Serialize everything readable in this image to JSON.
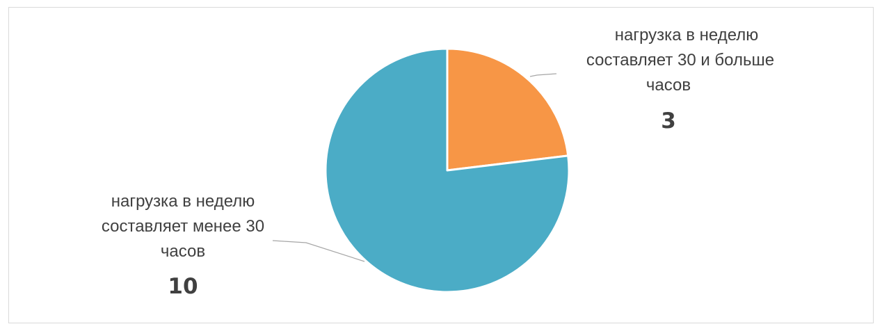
{
  "chart_data": {
    "type": "pie",
    "title": "",
    "slices": [
      {
        "label_lines": [
          "нагрузка в неделю",
          "составляет 30 и больше",
          "часов"
        ],
        "value": 3,
        "color": "#F79646",
        "label_position": "upper-right"
      },
      {
        "label_lines": [
          "нагрузка в неделю",
          "составляет менее 30",
          "часов"
        ],
        "value": 10,
        "color": "#4BACC6",
        "label_position": "lower-left"
      }
    ],
    "start_angle_deg": 0,
    "direction": "clockwise",
    "legend": "none",
    "leader_color": "#a6a6a6",
    "border_color": "#ffffff"
  }
}
